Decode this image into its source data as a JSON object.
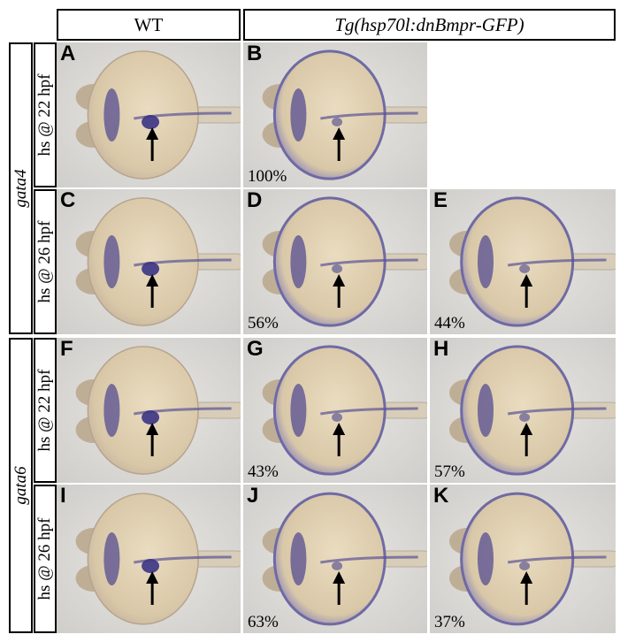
{
  "columns": {
    "wt": "WT",
    "tg": "Tg(hsp70l:dnBmpr-GFP)"
  },
  "genes": {
    "gata4": "gata4",
    "gata6": "gata6"
  },
  "conditions": {
    "r1": "hs @ 22 hpf",
    "r2": "hs @ 26 hpf",
    "r3": "hs @ 22 hpf",
    "r4": "hs @ 26 hpf"
  },
  "panels": {
    "A": {
      "label": "A",
      "percent": ""
    },
    "B": {
      "label": "B",
      "percent": "100%"
    },
    "C": {
      "label": "C",
      "percent": ""
    },
    "D": {
      "label": "D",
      "percent": "56%"
    },
    "E": {
      "label": "E",
      "percent": "44%"
    },
    "F": {
      "label": "F",
      "percent": ""
    },
    "G": {
      "label": "G",
      "percent": "43%"
    },
    "H": {
      "label": "H",
      "percent": "57%"
    },
    "I": {
      "label": "I",
      "percent": ""
    },
    "J": {
      "label": "J",
      "percent": "63%"
    },
    "K": {
      "label": "K",
      "percent": "37%"
    }
  }
}
